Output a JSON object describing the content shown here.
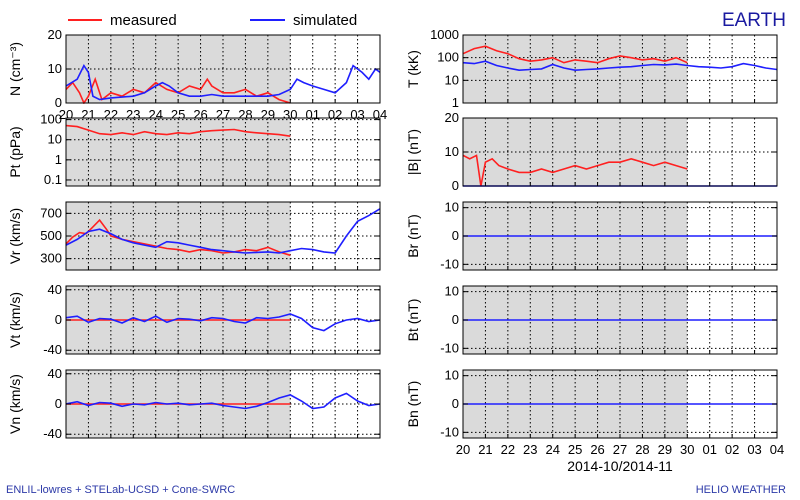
{
  "header": {
    "location": "EARTH",
    "legend": [
      {
        "label": "measured",
        "color": "#ff2020"
      },
      {
        "label": "simulated",
        "color": "#1f1fff"
      }
    ]
  },
  "footer": {
    "left": "ENLIL-lowres + STELab-UCSD + Cone-SWRC",
    "right": "HELIO  WEATHER"
  },
  "chart_data": [
    {
      "type": "line",
      "ylabel": "N (cm⁻³)",
      "scale": "linear",
      "ylim": [
        0,
        20
      ],
      "yticks": [
        0,
        10,
        20
      ],
      "shade_until_day": 10,
      "grid": true,
      "x_label": "2014-10/2014-11",
      "x_tick_labels": [
        "20",
        "21",
        "22",
        "23",
        "24",
        "25",
        "26",
        "27",
        "28",
        "29",
        "30",
        "01",
        "02",
        "03",
        "04"
      ],
      "series": [
        {
          "name": "measured",
          "color": "#ff2020",
          "x": [
            0,
            0.3,
            0.6,
            0.8,
            1.0,
            1.3,
            1.6,
            2.0,
            2.5,
            3.0,
            3.5,
            4.0,
            4.5,
            5.0,
            5.5,
            6.0,
            6.3,
            6.5,
            7.0,
            7.5,
            8.0,
            8.5,
            9.0,
            9.5,
            10.0
          ],
          "y": [
            4,
            6,
            3,
            0,
            2,
            7,
            1,
            3,
            2,
            4,
            3,
            6,
            4,
            3,
            5,
            4,
            7,
            5,
            3,
            3,
            4,
            2,
            3,
            1,
            0
          ]
        },
        {
          "name": "simulated",
          "color": "#1f1fff",
          "x": [
            0,
            0.5,
            0.8,
            1.0,
            1.2,
            1.5,
            2.0,
            3.0,
            3.5,
            4.0,
            4.3,
            4.6,
            5.0,
            5.5,
            6.0,
            6.5,
            7.0,
            8.0,
            9.0,
            9.5,
            10.0,
            10.3,
            10.6,
            11.0,
            11.5,
            12.0,
            12.5,
            12.8,
            13.2,
            13.5,
            13.8,
            14.0
          ],
          "y": [
            5,
            7,
            11,
            9,
            2,
            1,
            1.5,
            2,
            3,
            5,
            6,
            5,
            3,
            2,
            2,
            2.5,
            2,
            2,
            2,
            2.5,
            4,
            7,
            6,
            5,
            4,
            3,
            6,
            11,
            9,
            7,
            10,
            9
          ]
        }
      ]
    },
    {
      "type": "line",
      "ylabel": "Pt (pPa)",
      "scale": "log",
      "ylim": [
        0.05,
        120
      ],
      "yticks": [
        0.1,
        1,
        10,
        100
      ],
      "ytick_labels": [
        "0.1",
        "1",
        "10",
        "100"
      ],
      "shade_until_day": 10,
      "grid": true,
      "series": [
        {
          "name": "measured",
          "color": "#ff2020",
          "x": [
            0,
            0.5,
            1.0,
            1.5,
            2.0,
            2.5,
            3.0,
            3.5,
            4.0,
            4.5,
            5.0,
            5.5,
            6.0,
            6.5,
            7.0,
            7.5,
            8.0,
            8.5,
            9.0,
            9.5,
            10.0
          ],
          "y": [
            50,
            45,
            30,
            20,
            18,
            22,
            18,
            25,
            20,
            18,
            22,
            20,
            25,
            28,
            30,
            32,
            25,
            22,
            20,
            18,
            15
          ]
        }
      ]
    },
    {
      "type": "line",
      "ylabel": "Vr (km/s)",
      "scale": "linear",
      "ylim": [
        200,
        800
      ],
      "yticks": [
        300,
        500,
        700
      ],
      "shade_until_day": 10,
      "grid": true,
      "series": [
        {
          "name": "measured",
          "color": "#ff2020",
          "x": [
            0,
            0.3,
            0.6,
            0.9,
            1.2,
            1.5,
            1.8,
            2.0,
            2.5,
            3.0,
            3.5,
            4.0,
            4.5,
            5.0,
            5.5,
            6.0,
            6.5,
            7.0,
            7.5,
            8.0,
            8.5,
            9.0,
            9.5,
            10.0
          ],
          "y": [
            430,
            490,
            530,
            520,
            580,
            640,
            560,
            500,
            470,
            450,
            430,
            410,
            390,
            380,
            360,
            380,
            370,
            350,
            360,
            380,
            370,
            400,
            360,
            330
          ]
        },
        {
          "name": "simulated",
          "color": "#1f1fff",
          "x": [
            0,
            0.5,
            1.0,
            1.5,
            2.0,
            2.5,
            3.0,
            3.5,
            4.0,
            4.5,
            5.0,
            5.5,
            6.0,
            6.5,
            7.0,
            7.5,
            8.0,
            8.5,
            9.0,
            9.5,
            10.0,
            10.5,
            11.0,
            11.5,
            12.0,
            12.5,
            13.0,
            13.5,
            14.0
          ],
          "y": [
            420,
            470,
            540,
            560,
            520,
            470,
            440,
            420,
            400,
            450,
            440,
            420,
            400,
            380,
            370,
            360,
            350,
            355,
            360,
            350,
            370,
            390,
            380,
            360,
            350,
            500,
            630,
            680,
            740
          ]
        }
      ]
    },
    {
      "type": "line",
      "ylabel": "Vt (km/s)",
      "scale": "linear",
      "ylim": [
        -45,
        45
      ],
      "yticks": [
        -40,
        0,
        40
      ],
      "shade_until_day": 10,
      "grid": true,
      "series": [
        {
          "name": "measured",
          "color": "#ff2020",
          "x": [
            0,
            10
          ],
          "y": [
            0,
            0
          ]
        },
        {
          "name": "simulated",
          "color": "#1f1fff",
          "x": [
            0,
            0.5,
            1.0,
            1.5,
            2.0,
            2.5,
            3.0,
            3.5,
            4.0,
            4.5,
            5.0,
            5.5,
            6.0,
            6.5,
            7.0,
            7.5,
            8.0,
            8.5,
            9.0,
            9.5,
            10.0,
            10.5,
            11.0,
            11.5,
            12.0,
            12.5,
            13.0,
            13.5,
            14.0
          ],
          "y": [
            3,
            5,
            -3,
            2,
            1,
            -4,
            3,
            -2,
            5,
            -3,
            2,
            1,
            -1,
            3,
            2,
            -2,
            -4,
            3,
            2,
            4,
            8,
            2,
            -10,
            -14,
            -5,
            0,
            2,
            -2,
            0
          ]
        }
      ]
    },
    {
      "type": "line",
      "ylabel": "Vn (km/s)",
      "scale": "linear",
      "ylim": [
        -45,
        45
      ],
      "yticks": [
        -40,
        0,
        40
      ],
      "shade_until_day": 10,
      "grid": true,
      "series": [
        {
          "name": "measured",
          "color": "#ff2020",
          "x": [
            0,
            10
          ],
          "y": [
            0,
            0
          ]
        },
        {
          "name": "simulated",
          "color": "#1f1fff",
          "x": [
            0,
            0.5,
            1.0,
            1.5,
            2.0,
            2.5,
            3.0,
            3.5,
            4.0,
            4.5,
            5.0,
            5.5,
            6.0,
            6.5,
            7.0,
            7.5,
            8.0,
            8.5,
            9.0,
            9.5,
            10.0,
            10.5,
            11.0,
            11.5,
            12.0,
            12.5,
            13.0,
            13.5,
            14.0
          ],
          "y": [
            0,
            3,
            -2,
            2,
            1,
            -3,
            0,
            -1,
            2,
            0,
            1,
            -1,
            0,
            1,
            -2,
            -4,
            -6,
            -3,
            2,
            8,
            12,
            4,
            -6,
            -4,
            8,
            14,
            4,
            -2,
            0
          ]
        }
      ]
    },
    {
      "type": "line",
      "ylabel": "T (kK)",
      "scale": "log",
      "ylim": [
        1,
        1000
      ],
      "yticks": [
        1,
        10,
        100,
        1000
      ],
      "ytick_labels": [
        "1",
        "10",
        "100",
        "1000"
      ],
      "shade_until_day": 10,
      "grid": true,
      "series": [
        {
          "name": "measured",
          "color": "#ff2020",
          "x": [
            0,
            0.5,
            1.0,
            1.5,
            2.0,
            2.5,
            3.0,
            3.5,
            4.0,
            4.5,
            5.0,
            5.5,
            6.0,
            6.5,
            7.0,
            7.5,
            8.0,
            8.5,
            9.0,
            9.5,
            10.0
          ],
          "y": [
            150,
            250,
            320,
            200,
            150,
            90,
            70,
            80,
            100,
            60,
            80,
            70,
            60,
            90,
            120,
            100,
            80,
            90,
            70,
            100,
            60
          ]
        },
        {
          "name": "simulated",
          "color": "#1f1fff",
          "x": [
            0,
            0.5,
            1.0,
            1.5,
            2.0,
            2.5,
            3.0,
            3.5,
            4.0,
            4.5,
            5.0,
            5.5,
            6.0,
            6.5,
            7.0,
            7.5,
            8.0,
            8.5,
            9.0,
            9.5,
            10.0,
            10.5,
            11.0,
            11.5,
            12.0,
            12.5,
            13.0,
            13.5,
            14.0
          ],
          "y": [
            60,
            55,
            70,
            45,
            35,
            28,
            30,
            32,
            50,
            35,
            28,
            30,
            32,
            35,
            38,
            40,
            45,
            50,
            48,
            52,
            45,
            40,
            38,
            35,
            40,
            55,
            45,
            35,
            30
          ]
        }
      ]
    },
    {
      "type": "line",
      "ylabel": "|B| (nT)",
      "scale": "linear",
      "ylim": [
        0,
        20
      ],
      "yticks": [
        0,
        10,
        20
      ],
      "shade_until_day": 10,
      "grid": true,
      "series": [
        {
          "name": "measured",
          "color": "#ff2020",
          "x": [
            0,
            0.3,
            0.6,
            0.8,
            1.0,
            1.3,
            1.6,
            2.0,
            2.5,
            3.0,
            3.5,
            4.0,
            4.5,
            5.0,
            5.5,
            6.0,
            6.5,
            7.0,
            7.5,
            8.0,
            8.5,
            9.0,
            9.5,
            10.0
          ],
          "y": [
            9,
            8,
            9,
            0,
            7,
            8,
            6,
            5,
            4,
            4,
            5,
            4,
            5,
            6,
            5,
            6,
            7,
            7,
            8,
            7,
            6,
            7,
            6,
            5
          ]
        },
        {
          "name": "simulated",
          "color": "#1f1fff",
          "x": [
            0,
            14
          ],
          "y": [
            0,
            0
          ]
        }
      ]
    },
    {
      "type": "line",
      "ylabel": "Br (nT)",
      "scale": "linear",
      "ylim": [
        -12,
        12
      ],
      "yticks": [
        -10,
        0,
        10
      ],
      "shade_until_day": 10,
      "grid": true,
      "series": [
        {
          "name": "simulated",
          "color": "#1f1fff",
          "x": [
            0,
            14
          ],
          "y": [
            0,
            0
          ]
        }
      ]
    },
    {
      "type": "line",
      "ylabel": "Bt (nT)",
      "scale": "linear",
      "ylim": [
        -12,
        12
      ],
      "yticks": [
        -10,
        0,
        10
      ],
      "shade_until_day": 10,
      "grid": true,
      "series": [
        {
          "name": "simulated",
          "color": "#1f1fff",
          "x": [
            0,
            14
          ],
          "y": [
            0,
            0
          ]
        }
      ]
    },
    {
      "type": "line",
      "ylabel": "Bn (nT)",
      "scale": "linear",
      "ylim": [
        -12,
        12
      ],
      "yticks": [
        -10,
        0,
        10
      ],
      "shade_until_day": 10,
      "grid": true,
      "x_label": "2014-10/2014-11",
      "x_tick_labels": [
        "20",
        "21",
        "22",
        "23",
        "24",
        "25",
        "26",
        "27",
        "28",
        "29",
        "30",
        "01",
        "02",
        "03",
        "04"
      ],
      "series": [
        {
          "name": "simulated",
          "color": "#1f1fff",
          "x": [
            0,
            14
          ],
          "y": [
            0,
            0
          ]
        }
      ]
    }
  ]
}
